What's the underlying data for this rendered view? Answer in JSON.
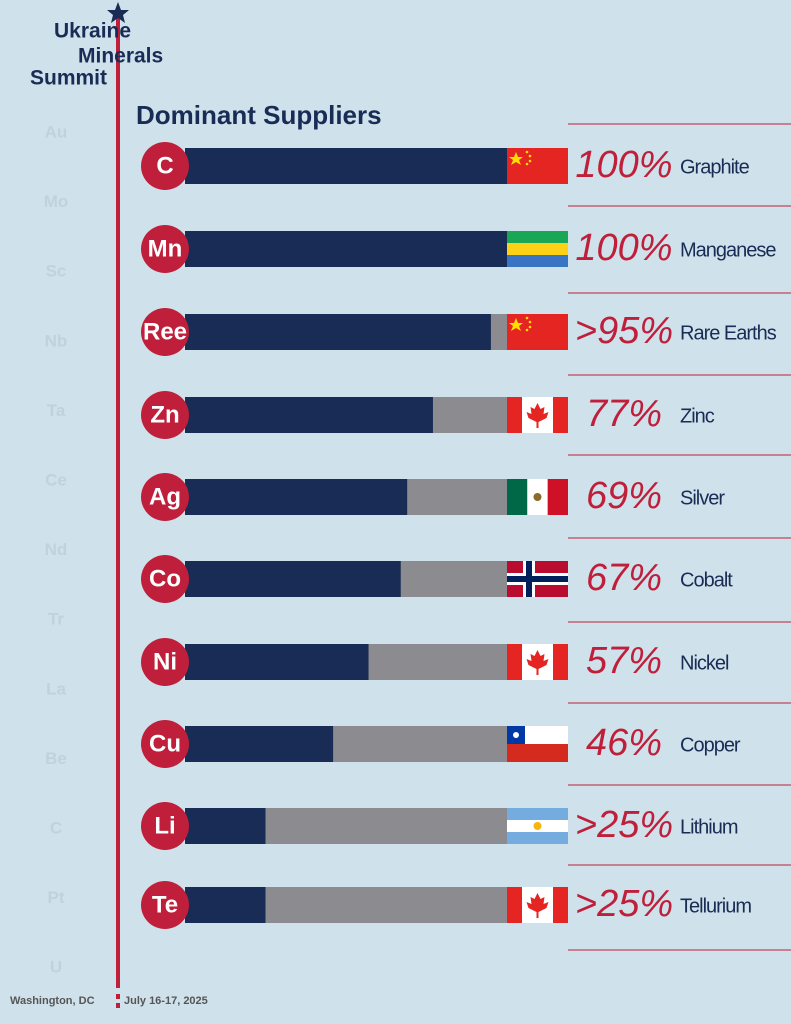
{
  "header": {
    "title_lines": [
      "Ukraine",
      "Minerals",
      "Summit"
    ]
  },
  "sidebar": {
    "elements": [
      "Au",
      "Mo",
      "Sc",
      "Nb",
      "Ta",
      "Ce",
      "Nd",
      "Tr",
      "La",
      "Be",
      "C",
      "Pt",
      "U"
    ]
  },
  "chart_data": {
    "type": "bar",
    "title": "Dominant Suppliers",
    "categories": [
      "Graphite",
      "Manganese",
      "Rare Earths",
      "Zinc",
      "Silver",
      "Cobalt",
      "Nickel",
      "Copper",
      "Lithium",
      "Tellurium"
    ],
    "symbols": [
      "C",
      "Mn",
      "Ree",
      "Zn",
      "Ag",
      "Co",
      "Ni",
      "Cu",
      "Li",
      "Te"
    ],
    "values": [
      100,
      100,
      95,
      77,
      69,
      67,
      57,
      46,
      25,
      25
    ],
    "value_labels": [
      "100%",
      "100%",
      ">95%",
      "77%",
      "69%",
      "67%",
      "57%",
      "46%",
      ">25%",
      ">25%"
    ],
    "xlim": [
      0,
      100
    ],
    "color": "#182c55"
  },
  "footer": {
    "location": "Washington, DC",
    "dates": "July 16-17, 2025"
  }
}
